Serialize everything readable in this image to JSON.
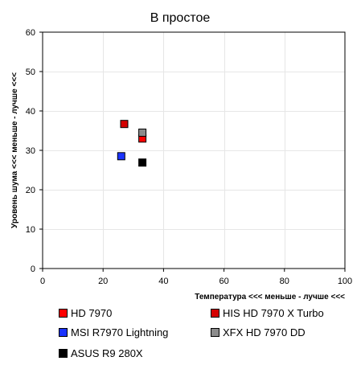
{
  "chart_data": {
    "type": "scatter",
    "title": "В простое",
    "xlabel": "Температура <<< меньше - лучше <<<",
    "ylabel": "Уровень шума <<< меньше - лучше <<<",
    "xlim": [
      0,
      100
    ],
    "ylim": [
      0,
      60
    ],
    "xticks": [
      0,
      20,
      40,
      60,
      80,
      100
    ],
    "yticks": [
      0,
      10,
      20,
      30,
      40,
      50,
      60
    ],
    "x_tick_labels": [
      "0",
      "20",
      "40",
      "60",
      "80",
      "100"
    ],
    "y_tick_labels": [
      "0",
      "10",
      "20",
      "30",
      "40",
      "50",
      "60"
    ],
    "grid": true,
    "legend_position": "bottom",
    "series": [
      {
        "name": "HD 7970",
        "color": "#ff0000",
        "x": [
          33
        ],
        "y": [
          33
        ]
      },
      {
        "name": "HIS HD 7970 X Turbo",
        "color": "#d40000",
        "x": [
          27
        ],
        "y": [
          36.7
        ]
      },
      {
        "name": "MSI R7970 Lightning",
        "color": "#1a33ff",
        "x": [
          26
        ],
        "y": [
          28.5
        ]
      },
      {
        "name": "XFX HD 7970 DD",
        "color": "#8c8c8c",
        "x": [
          33
        ],
        "y": [
          34.5
        ]
      },
      {
        "name": "ASUS R9 280X",
        "color": "#000000",
        "x": [
          33
        ],
        "y": [
          26.9
        ]
      }
    ]
  }
}
